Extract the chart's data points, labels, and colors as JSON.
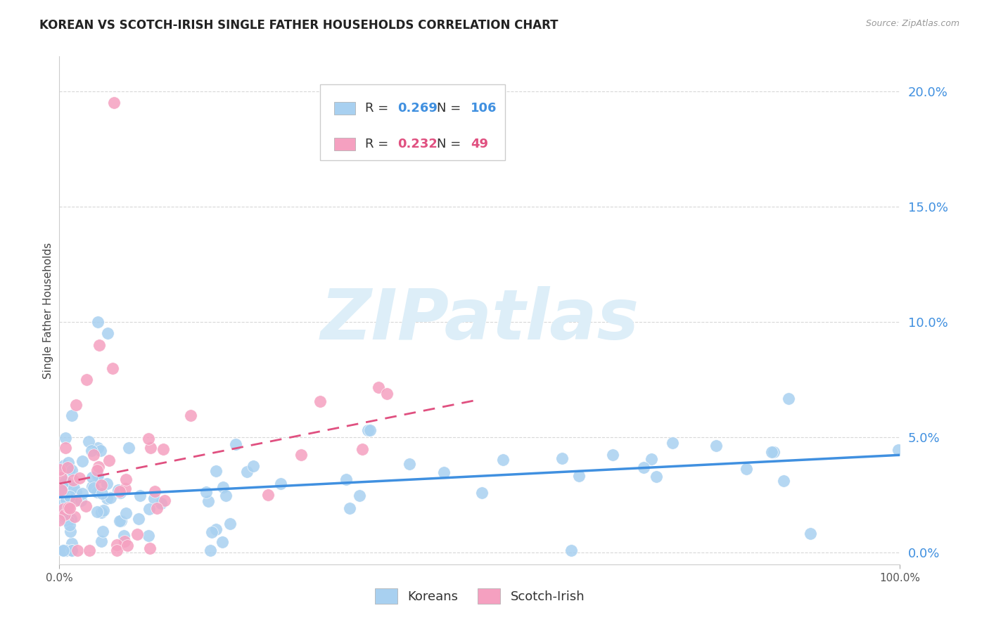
{
  "title": "KOREAN VS SCOTCH-IRISH SINGLE FATHER HOUSEHOLDS CORRELATION CHART",
  "source": "Source: ZipAtlas.com",
  "ylabel": "Single Father Households",
  "yticks": [
    0.0,
    0.05,
    0.1,
    0.15,
    0.2
  ],
  "ytick_labels": [
    "0.0%",
    "5.0%",
    "10.0%",
    "15.0%",
    "20.0%"
  ],
  "xlim": [
    0.0,
    1.0
  ],
  "ylim": [
    -0.005,
    0.215
  ],
  "korean_R": 0.269,
  "korean_N": 106,
  "scotch_R": 0.232,
  "scotch_N": 49,
  "korean_color": "#a8d0f0",
  "scotch_color": "#f5a0c0",
  "korean_line_color": "#4090e0",
  "scotch_line_color": "#e05080",
  "watermark": "ZIPatlas",
  "background_color": "#ffffff",
  "grid_color": "#d8d8d8",
  "title_fontsize": 12,
  "tick_color": "#4090e0"
}
